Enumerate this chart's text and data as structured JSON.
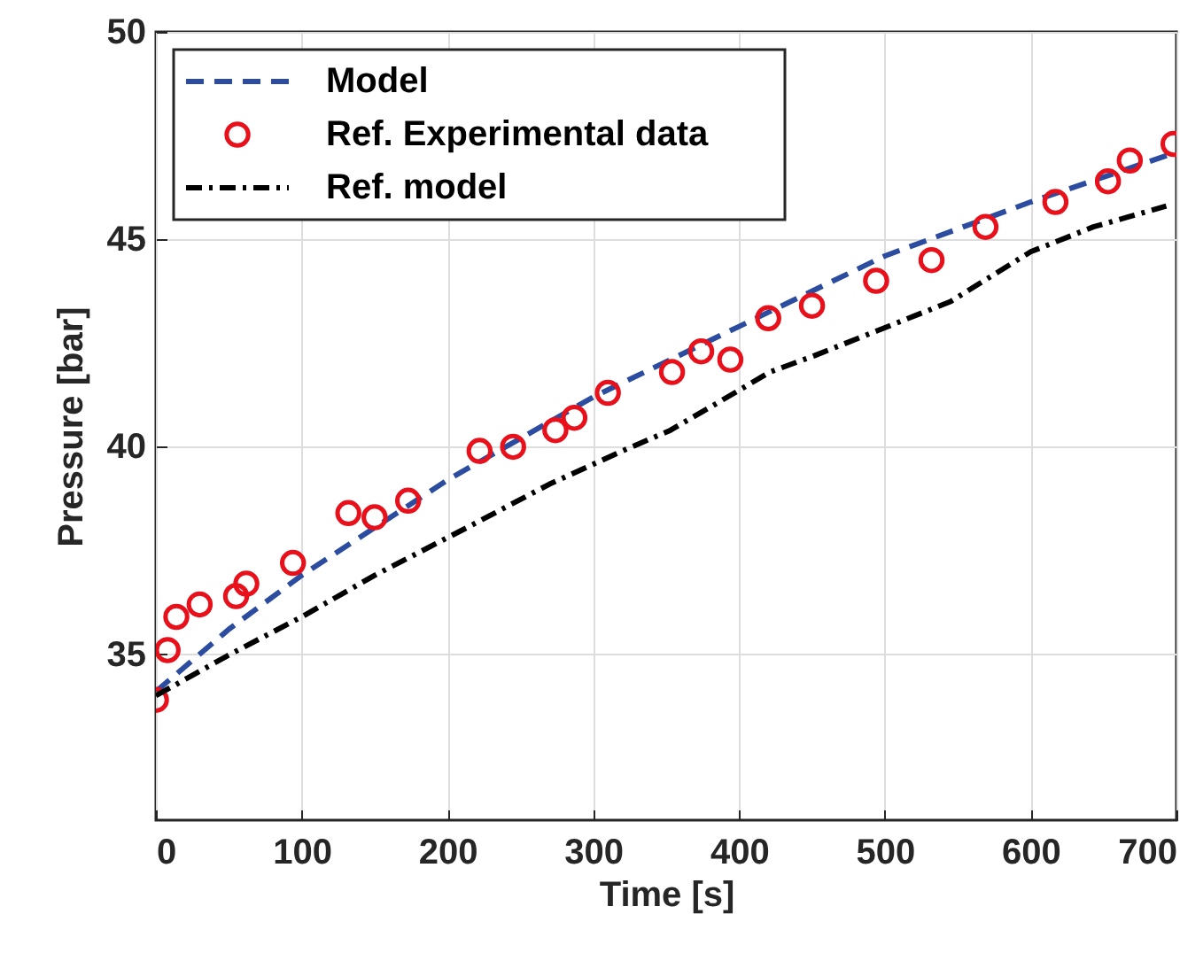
{
  "chart_data": {
    "type": "line",
    "xlabel": "Time [s]",
    "ylabel": "Pressure [bar]",
    "xlim": [
      0,
      700
    ],
    "xticks": [
      0,
      100,
      200,
      300,
      400,
      500,
      600,
      700
    ],
    "ylim": [
      31,
      50
    ],
    "yticks": [
      35,
      40,
      45,
      50
    ],
    "grid": true,
    "legend": "top left",
    "series": [
      {
        "name": "Model",
        "line_style": "dashed",
        "color": "#2b4c9f",
        "x": [
          0,
          50,
          100,
          200,
          300,
          400,
          500,
          600,
          700
        ],
        "values": [
          34.1,
          35.6,
          36.9,
          39.2,
          41.2,
          42.9,
          44.6,
          45.9,
          47.1
        ]
      },
      {
        "name": "Ref. Experimental data",
        "type": "scatter",
        "marker": "circle",
        "color": "#e8101a",
        "x": [
          0,
          8,
          14,
          30,
          55,
          62,
          94,
          132,
          150,
          173,
          222,
          245,
          274,
          287,
          310,
          354,
          374,
          394,
          420,
          450,
          494,
          532,
          569,
          617,
          653,
          668,
          698
        ],
        "values": [
          33.9,
          35.1,
          35.9,
          36.2,
          36.4,
          36.7,
          37.2,
          38.4,
          38.3,
          38.7,
          39.9,
          40.0,
          40.4,
          40.7,
          41.3,
          41.8,
          42.3,
          42.1,
          43.1,
          43.4,
          44.0,
          44.5,
          45.3,
          45.9,
          46.4,
          46.9,
          47.3
        ]
      },
      {
        "name": "Ref. model",
        "line_style": "dashdot",
        "color": "#000000",
        "x": [
          0,
          51,
          100,
          150,
          172,
          216,
          270,
          320,
          353,
          397,
          421,
          452,
          495,
          545,
          600,
          643,
          693
        ],
        "values": [
          34.0,
          35.0,
          35.9,
          36.9,
          37.3,
          38.1,
          39.1,
          39.9,
          40.4,
          41.3,
          41.8,
          42.2,
          42.8,
          43.5,
          44.7,
          45.3,
          45.8
        ]
      }
    ]
  }
}
